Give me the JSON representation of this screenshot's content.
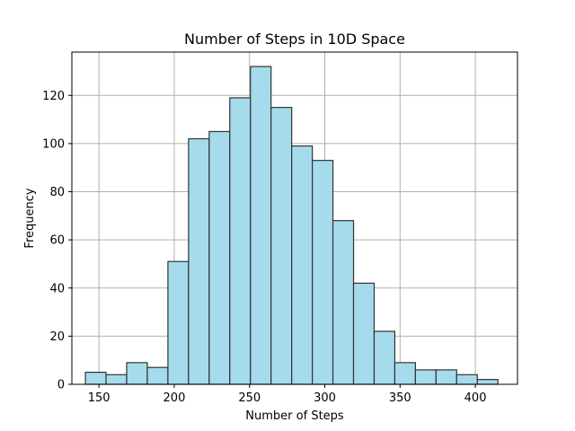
{
  "chart_data": {
    "type": "bar",
    "subtype": "histogram",
    "title": "Number of Steps in 10D Space",
    "xlabel": "Number of Steps",
    "ylabel": "Frequency",
    "xlim": [
      132,
      428
    ],
    "ylim": [
      0,
      138
    ],
    "xticks": [
      150,
      200,
      250,
      300,
      350,
      400
    ],
    "yticks": [
      0,
      20,
      40,
      60,
      80,
      100,
      120
    ],
    "grid": true,
    "bar_color": "#a6dbec",
    "edge_color": "#333333",
    "bin_edges": [
      141,
      154.7,
      168.4,
      182.1,
      195.8,
      209.5,
      223.2,
      236.9,
      250.6,
      264.3,
      278,
      291.7,
      305.4,
      319.1,
      332.8,
      346.5,
      360.2,
      373.9,
      387.6,
      401.3,
      415
    ],
    "values": [
      5,
      4,
      9,
      7,
      51,
      102,
      105,
      119,
      132,
      115,
      99,
      93,
      68,
      42,
      22,
      9,
      6,
      6,
      4,
      2
    ]
  }
}
